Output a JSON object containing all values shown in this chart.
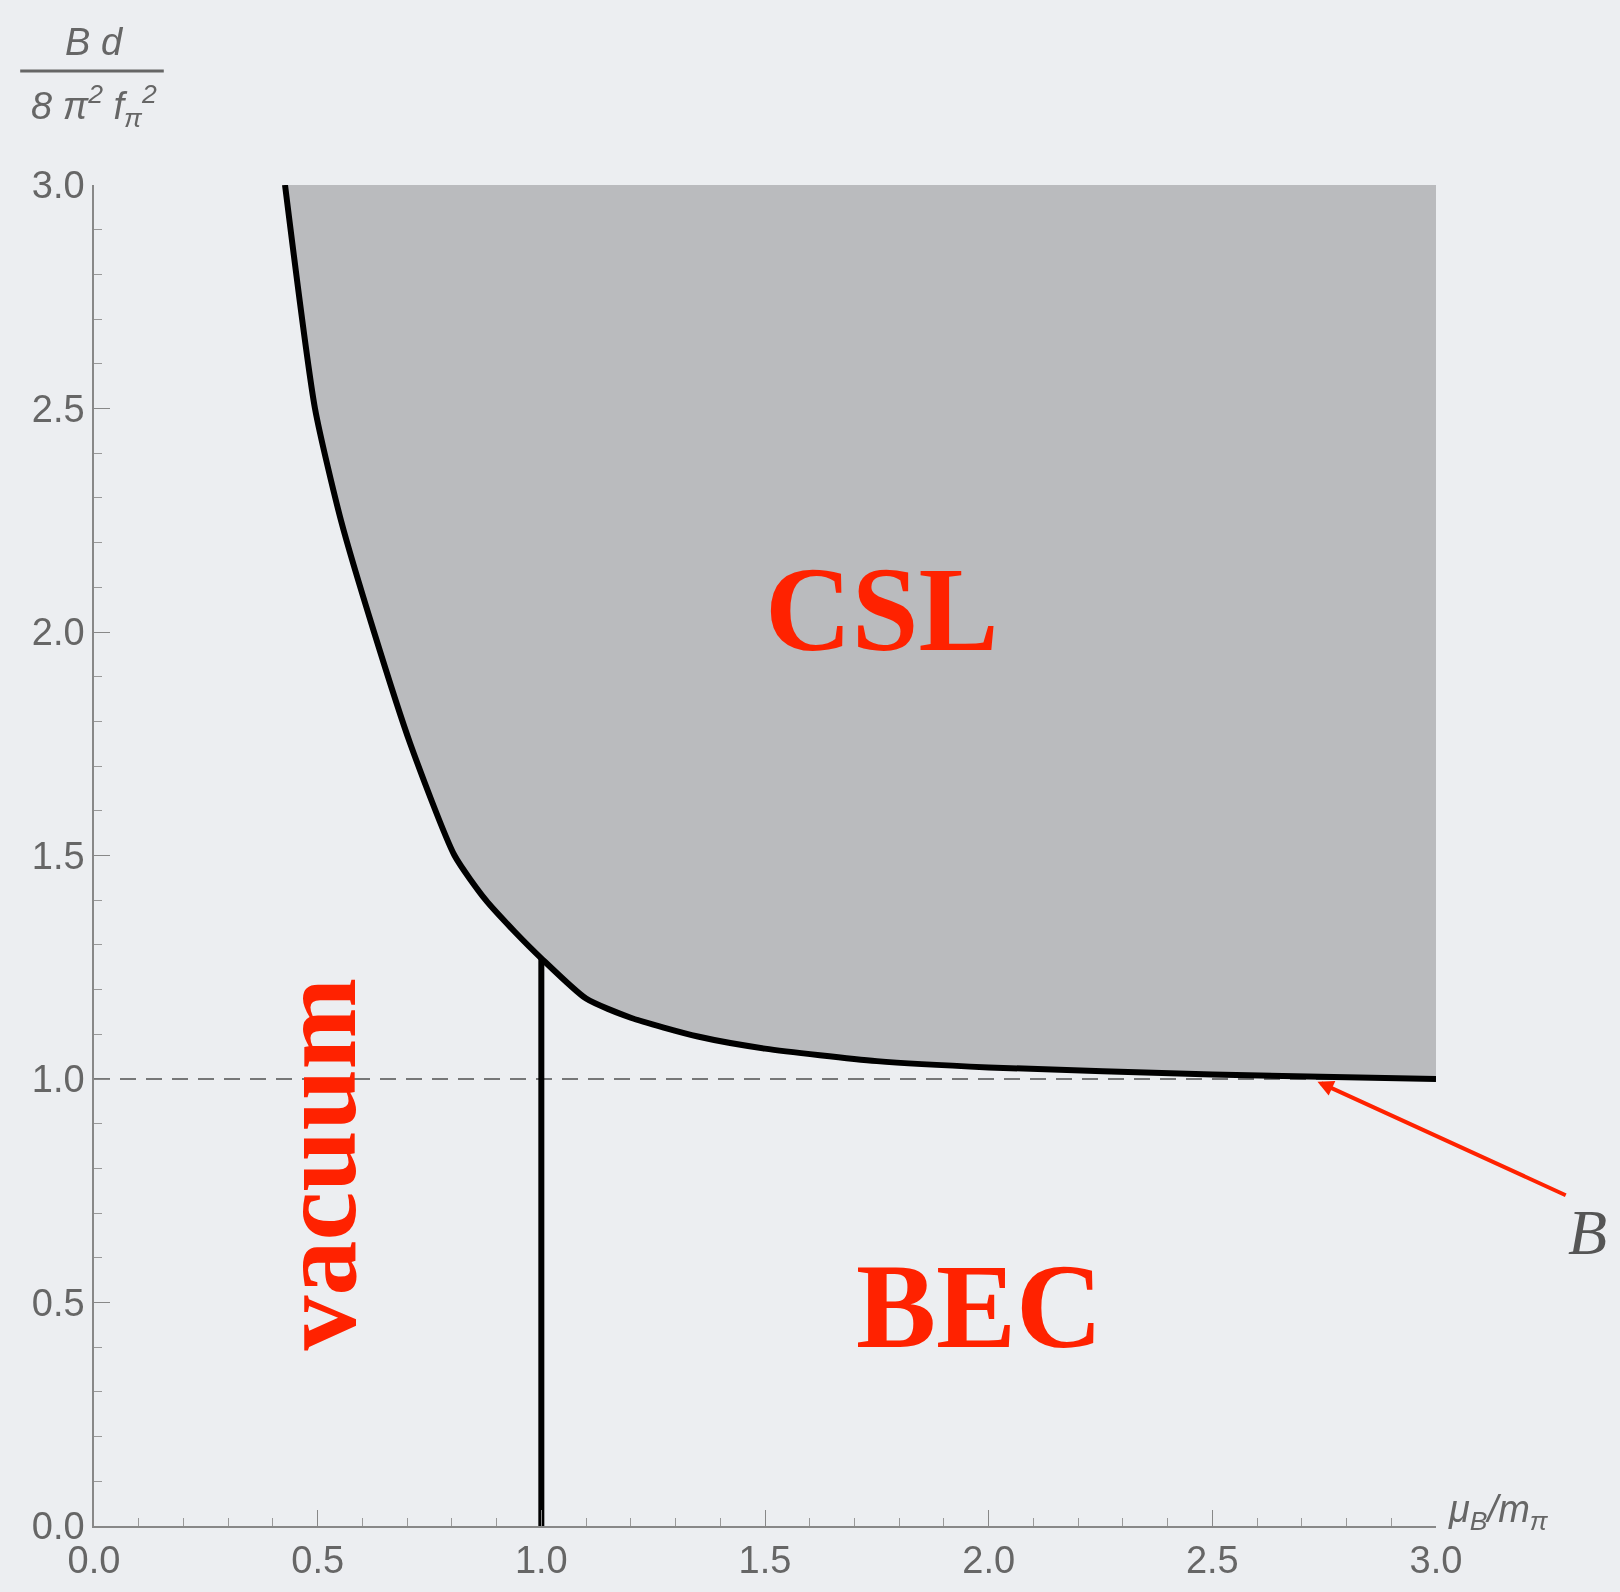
{
  "chart_data": {
    "type": "line",
    "ylabel": "B d\n8 π$^{2}$ f$_{π}$$^{2}$",
    "xlabel": "μ$_{B}$/m$_{π}$",
    "series": [
      {
        "type": "line",
        "color": "#000000",
        "x": [
          0.427,
          0.494,
          0.552,
          0.626,
          0.707,
          0.806,
          0.876,
          0.94,
          1.0,
          1.1,
          1.2,
          1.35,
          1.5,
          1.75,
          2.0,
          2.5,
          3.0
        ],
        "values": [
          3.0,
          2.5,
          2.25,
          2.0,
          1.75,
          1.5,
          1.4,
          1.33,
          1.27,
          1.18,
          1.137,
          1.095,
          1.068,
          1.04,
          1.026,
          1.01,
          1.0
        ],
        "lower": [
          3.0,
          2.5,
          2.25,
          2.0,
          1.75,
          1.5,
          1.4,
          1.33,
          1.27,
          1.18,
          1.137,
          1.095,
          1.068,
          1.04,
          1.026,
          1.01,
          1.0
        ],
        "upper": [
          3.0,
          3.0,
          3.0,
          3.0,
          3.0,
          3.0,
          3.0,
          3.0,
          3.0,
          3.0,
          3.0,
          3.0,
          3.0,
          3.0,
          3.0,
          3.0,
          3.0
        ]
      },
      {
        "type": "line",
        "color": "#000000",
        "x": [
          1.0,
          1.0
        ],
        "values": [
          0.0,
          1.27
        ]
      }
    ],
    "ref_lines": [
      {
        "axis": "y",
        "value": 1.0,
        "line_style": "dashed",
        "color": "#000000"
      }
    ],
    "annotations": [
      "CSL",
      "BEC",
      "vacuum",
      {
        "text": "B",
        "x": 2.735,
        "y": 0.994
      }
    ],
    "xlim": [
      0,
      3
    ],
    "ylim": [
      0,
      3
    ],
    "xticks": [
      {
        "value": 0,
        "label": "0.0"
      },
      {
        "value": 0.5,
        "label": "0.5"
      },
      {
        "value": 1,
        "label": "1.0"
      },
      {
        "value": 1.5,
        "label": "1.5"
      },
      {
        "value": 2,
        "label": "2.0"
      },
      {
        "value": 2.5,
        "label": "2.5"
      },
      {
        "value": 3,
        "label": "3.0"
      }
    ],
    "yticks": [
      {
        "value": 0,
        "label": "0.0"
      },
      {
        "value": 0.5,
        "label": "0.5"
      },
      {
        "value": 1,
        "label": "1.0"
      },
      {
        "value": 1.5,
        "label": "1.5"
      },
      {
        "value": 2,
        "label": "2.0"
      },
      {
        "value": 2.5,
        "label": "2.5"
      },
      {
        "value": 3,
        "label": "3.0"
      }
    ]
  }
}
